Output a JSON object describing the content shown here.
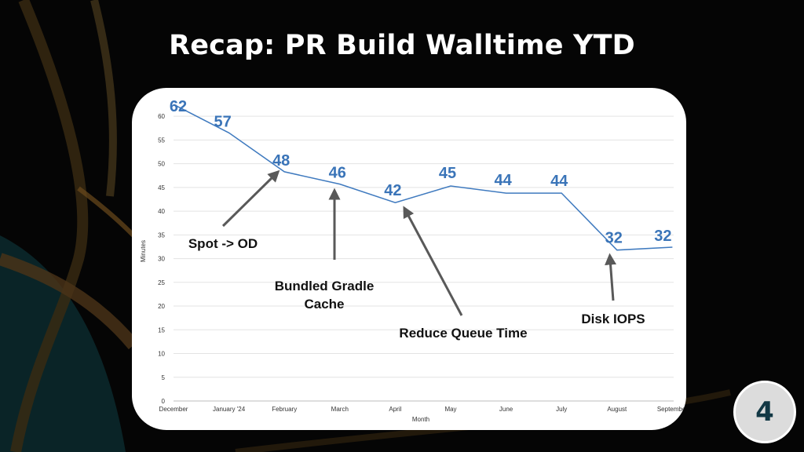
{
  "slide": {
    "title": "Recap: PR Build Walltime YTD",
    "page_number": "4"
  },
  "colors": {
    "line": "#3f7abf",
    "label": "#3a74b8",
    "annotation_arrow": "#595959",
    "grid": "#e3e3e3"
  },
  "chart_data": {
    "type": "line",
    "title": "",
    "xlabel": "Month",
    "ylabel": "Minutes",
    "ylim": [
      0,
      63
    ],
    "yticks": [
      0,
      5,
      10,
      15,
      20,
      25,
      30,
      35,
      40,
      45,
      50,
      55,
      60
    ],
    "grid": true,
    "categories": [
      "December",
      "January '24",
      "February",
      "March",
      "April",
      "May",
      "June",
      "July",
      "August",
      "September"
    ],
    "values": [
      62.5,
      56.5,
      48.3,
      45.7,
      41.8,
      45.3,
      43.8,
      43.8,
      31.8,
      32.4
    ],
    "data_labels": [
      "62",
      "57",
      "48",
      "46",
      "42",
      "45",
      "44",
      "44",
      "32",
      "32"
    ],
    "annotations": [
      {
        "text": "Spot -> OD",
        "target_index": 2
      },
      {
        "text": "Bundled Gradle Cache",
        "target_index": 3
      },
      {
        "text": "Reduce Queue Time",
        "target_index": 4
      },
      {
        "text": "Disk IOPS",
        "target_index": 8
      }
    ]
  }
}
